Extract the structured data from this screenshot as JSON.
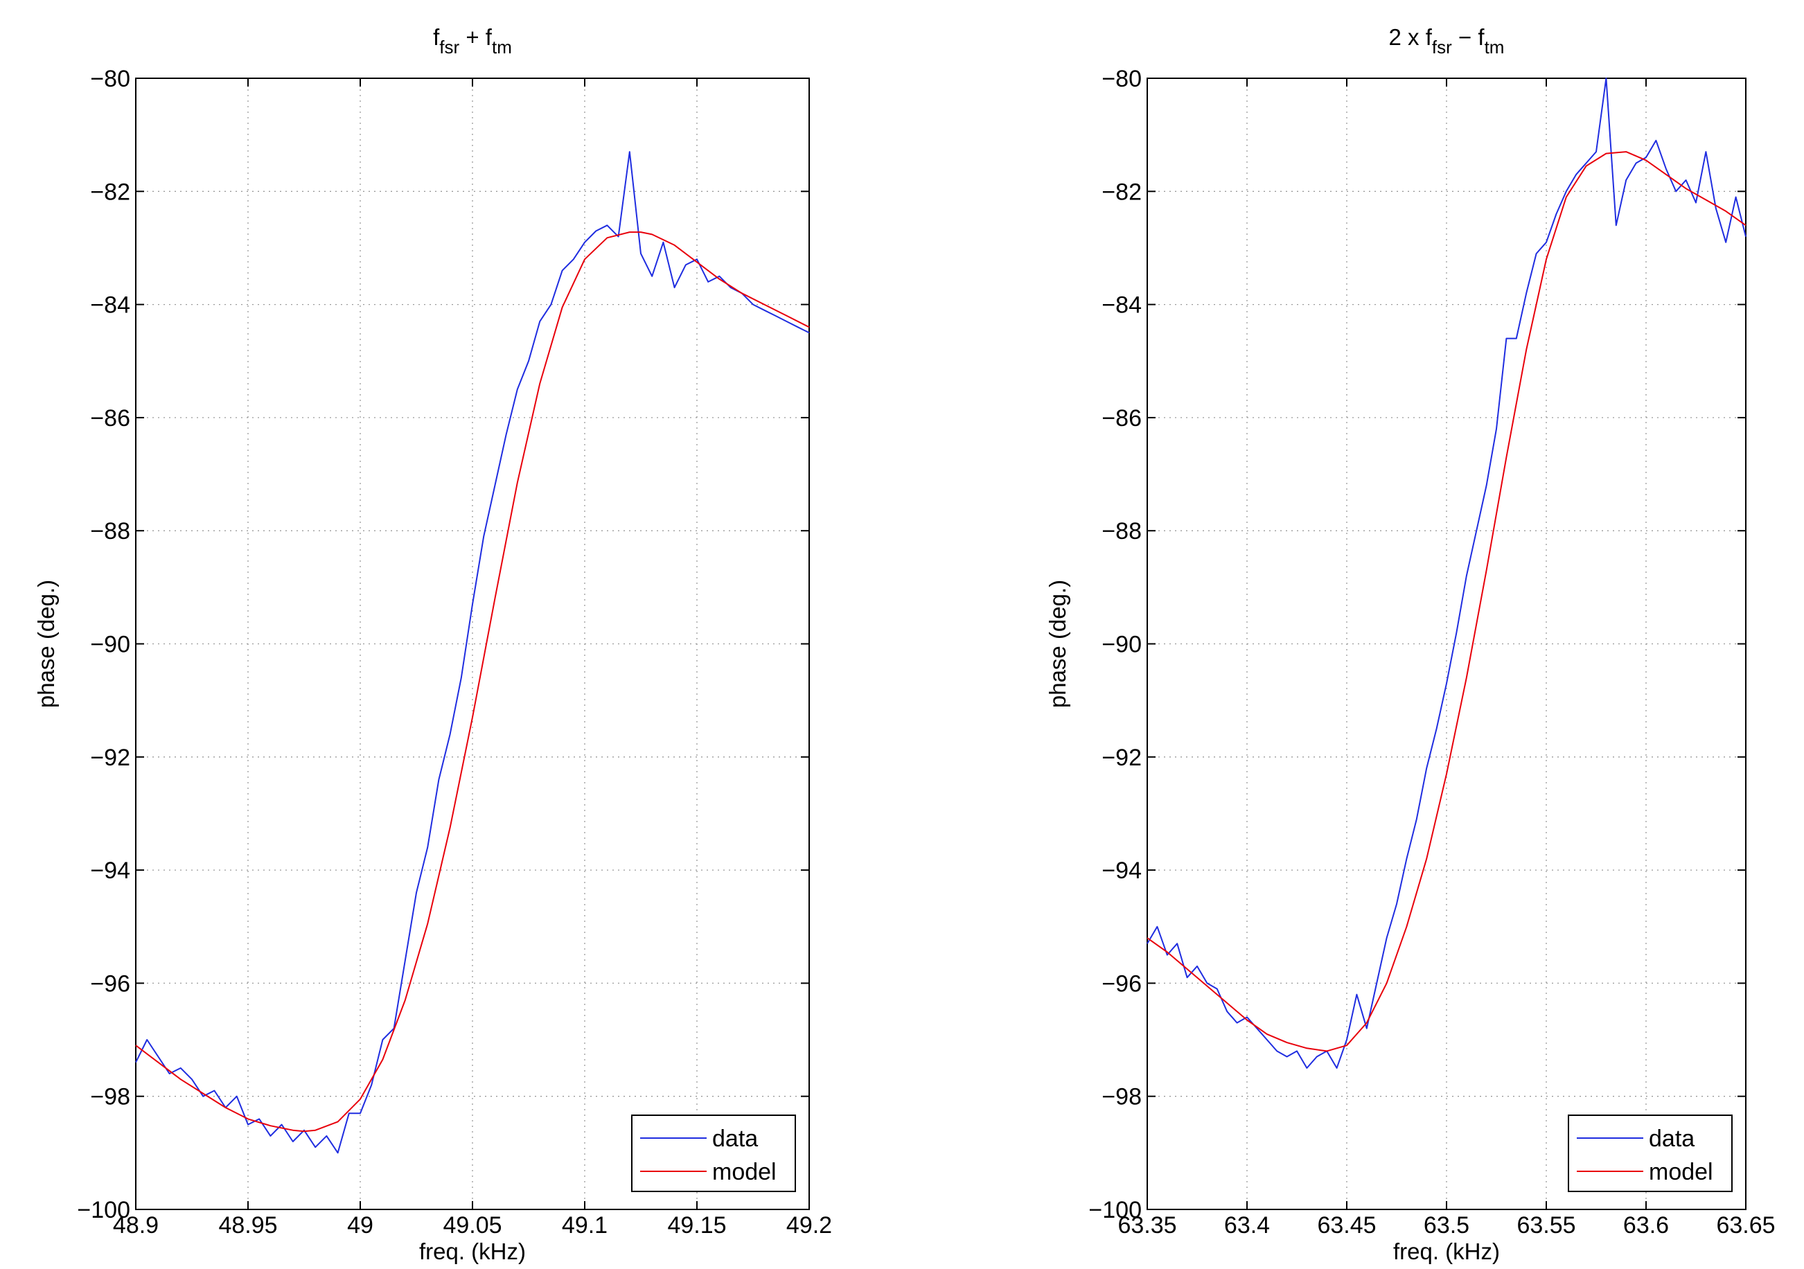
{
  "figure": {
    "background": "#ffffff"
  },
  "chart_data": [
    {
      "type": "line",
      "title_main": "f",
      "title": "f_fsr + f_tm",
      "title_parts": [
        {
          "text": "f",
          "sub": false
        },
        {
          "text": "fsr",
          "sub": true
        },
        {
          "text": " + f",
          "sub": false
        },
        {
          "text": "tm",
          "sub": true
        }
      ],
      "xlabel": "freq. (kHz)",
      "ylabel": "phase (deg.)",
      "xlim": [
        48.9,
        49.2
      ],
      "ylim": [
        -100,
        -80
      ],
      "xticks": [
        48.9,
        48.95,
        49,
        49.05,
        49.1,
        49.15,
        49.2
      ],
      "xtick_labels": [
        "48.9",
        "48.95",
        "49",
        "49.05",
        "49.1",
        "49.15",
        "49.2"
      ],
      "yticks": [
        -100,
        -98,
        -96,
        -94,
        -92,
        -90,
        -88,
        -86,
        -84,
        -82,
        -80
      ],
      "ytick_labels": [
        "−100",
        "−98",
        "−96",
        "−94",
        "−92",
        "−90",
        "−88",
        "−86",
        "−84",
        "−82",
        "−80"
      ],
      "grid": true,
      "legend_position": "bottom-right",
      "series": [
        {
          "name": "data",
          "color": "#1f2de0",
          "x": [
            48.9,
            48.905,
            48.91,
            48.915,
            48.92,
            48.925,
            48.93,
            48.935,
            48.94,
            48.945,
            48.95,
            48.955,
            48.96,
            48.965,
            48.97,
            48.975,
            48.98,
            48.985,
            48.99,
            48.995,
            49.0,
            49.005,
            49.01,
            49.015,
            49.02,
            49.025,
            49.03,
            49.035,
            49.04,
            49.045,
            49.05,
            49.055,
            49.06,
            49.065,
            49.07,
            49.075,
            49.08,
            49.085,
            49.09,
            49.095,
            49.1,
            49.105,
            49.11,
            49.115,
            49.12,
            49.125,
            49.13,
            49.135,
            49.14,
            49.145,
            49.15,
            49.155,
            49.16,
            49.165,
            49.17,
            49.175,
            49.18,
            49.185,
            49.19,
            49.195,
            49.2
          ],
          "y": [
            -97.4,
            -97.0,
            -97.3,
            -97.6,
            -97.5,
            -97.7,
            -98.0,
            -97.9,
            -98.2,
            -98.0,
            -98.5,
            -98.4,
            -98.7,
            -98.5,
            -98.8,
            -98.6,
            -98.9,
            -98.7,
            -99.0,
            -98.3,
            -98.3,
            -97.8,
            -97.0,
            -96.8,
            -95.6,
            -94.4,
            -93.6,
            -92.4,
            -91.6,
            -90.6,
            -89.3,
            -88.1,
            -87.2,
            -86.3,
            -85.5,
            -85.0,
            -84.3,
            -84.0,
            -83.4,
            -83.2,
            -82.9,
            -82.7,
            -82.6,
            -82.8,
            -81.3,
            -83.1,
            -83.5,
            -82.9,
            -83.7,
            -83.3,
            -83.2,
            -83.6,
            -83.5,
            -83.7,
            -83.8,
            -84.0,
            -84.1,
            -84.2,
            -84.3,
            -84.4,
            -84.5
          ]
        },
        {
          "name": "model",
          "color": "#e8000b",
          "x": [
            48.9,
            48.91,
            48.92,
            48.93,
            48.94,
            48.95,
            48.96,
            48.97,
            48.975,
            48.98,
            48.99,
            49.0,
            49.01,
            49.02,
            49.03,
            49.04,
            49.05,
            49.06,
            49.07,
            49.08,
            49.09,
            49.1,
            49.11,
            49.12,
            49.125,
            49.13,
            49.14,
            49.15,
            49.16,
            49.17,
            49.18,
            49.19,
            49.2
          ],
          "y": [
            -97.1,
            -97.4,
            -97.7,
            -97.95,
            -98.2,
            -98.4,
            -98.52,
            -98.6,
            -98.62,
            -98.6,
            -98.45,
            -98.05,
            -97.35,
            -96.3,
            -94.95,
            -93.25,
            -91.3,
            -89.2,
            -87.15,
            -85.4,
            -84.05,
            -83.2,
            -82.82,
            -82.72,
            -82.72,
            -82.76,
            -82.95,
            -83.25,
            -83.55,
            -83.8,
            -84.0,
            -84.2,
            -84.4
          ]
        }
      ]
    },
    {
      "type": "line",
      "title": "2 x f_fsr − f_tm",
      "title_parts": [
        {
          "text": "2 x f",
          "sub": false
        },
        {
          "text": "fsr",
          "sub": true
        },
        {
          "text": " − f",
          "sub": false
        },
        {
          "text": "tm",
          "sub": true
        }
      ],
      "xlabel": "freq. (kHz)",
      "ylabel": "phase (deg.)",
      "xlim": [
        63.35,
        63.65
      ],
      "ylim": [
        -100,
        -80
      ],
      "xticks": [
        63.35,
        63.4,
        63.45,
        63.5,
        63.55,
        63.6,
        63.65
      ],
      "xtick_labels": [
        "63.35",
        "63.4",
        "63.45",
        "63.5",
        "63.55",
        "63.6",
        "63.65"
      ],
      "yticks": [
        -100,
        -98,
        -96,
        -94,
        -92,
        -90,
        -88,
        -86,
        -84,
        -82,
        -80
      ],
      "ytick_labels": [
        "−100",
        "−98",
        "−96",
        "−94",
        "−92",
        "−90",
        "−88",
        "−86",
        "−84",
        "−82",
        "−80"
      ],
      "grid": true,
      "legend_position": "bottom-right",
      "series": [
        {
          "name": "data",
          "color": "#1f2de0",
          "x": [
            63.35,
            63.355,
            63.36,
            63.365,
            63.37,
            63.375,
            63.38,
            63.385,
            63.39,
            63.395,
            63.4,
            63.405,
            63.41,
            63.415,
            63.42,
            63.425,
            63.43,
            63.435,
            63.44,
            63.445,
            63.45,
            63.455,
            63.46,
            63.465,
            63.47,
            63.475,
            63.48,
            63.485,
            63.49,
            63.495,
            63.5,
            63.505,
            63.51,
            63.515,
            63.52,
            63.525,
            63.53,
            63.535,
            63.54,
            63.545,
            63.55,
            63.555,
            63.56,
            63.565,
            63.57,
            63.575,
            63.58,
            63.585,
            63.59,
            63.595,
            63.6,
            63.605,
            63.61,
            63.615,
            63.62,
            63.625,
            63.63,
            63.635,
            63.64,
            63.645,
            63.65
          ],
          "y": [
            -95.3,
            -95.0,
            -95.5,
            -95.3,
            -95.9,
            -95.7,
            -96.0,
            -96.1,
            -96.5,
            -96.7,
            -96.6,
            -96.8,
            -97.0,
            -97.2,
            -97.3,
            -97.2,
            -97.5,
            -97.3,
            -97.2,
            -97.5,
            -97.0,
            -96.2,
            -96.8,
            -96.0,
            -95.2,
            -94.6,
            -93.8,
            -93.1,
            -92.2,
            -91.5,
            -90.7,
            -89.8,
            -88.8,
            -88.0,
            -87.2,
            -86.2,
            -84.6,
            -84.6,
            -83.8,
            -83.1,
            -82.9,
            -82.4,
            -82.0,
            -81.7,
            -81.5,
            -81.3,
            -80.0,
            -82.6,
            -81.8,
            -81.5,
            -81.4,
            -81.1,
            -81.6,
            -82.0,
            -81.8,
            -82.2,
            -81.3,
            -82.3,
            -82.9,
            -82.1,
            -82.8
          ]
        },
        {
          "name": "model",
          "color": "#e8000b",
          "x": [
            63.35,
            63.36,
            63.37,
            63.38,
            63.39,
            63.4,
            63.41,
            63.42,
            63.43,
            63.44,
            63.45,
            63.46,
            63.47,
            63.48,
            63.49,
            63.5,
            63.51,
            63.52,
            63.53,
            63.54,
            63.55,
            63.56,
            63.57,
            63.58,
            63.59,
            63.6,
            63.61,
            63.62,
            63.63,
            63.64,
            63.65
          ],
          "y": [
            -95.2,
            -95.45,
            -95.75,
            -96.05,
            -96.35,
            -96.65,
            -96.9,
            -97.05,
            -97.15,
            -97.2,
            -97.1,
            -96.7,
            -96.0,
            -95.0,
            -93.8,
            -92.3,
            -90.6,
            -88.7,
            -86.7,
            -84.8,
            -83.2,
            -82.1,
            -81.55,
            -81.33,
            -81.3,
            -81.45,
            -81.7,
            -81.95,
            -82.15,
            -82.35,
            -82.6
          ]
        }
      ]
    }
  ]
}
